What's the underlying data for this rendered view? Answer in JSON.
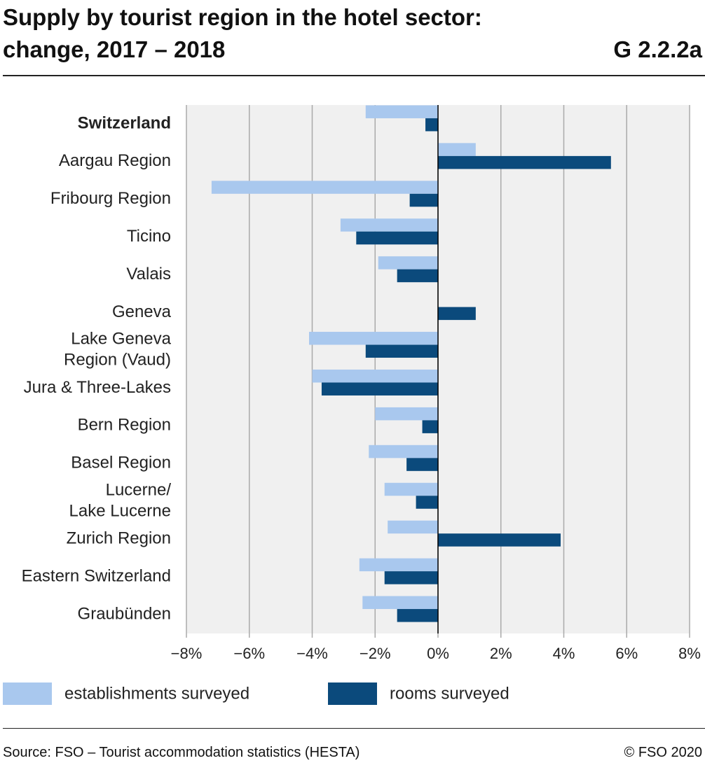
{
  "chart_data": {
    "type": "hbar",
    "title": "Supply by tourist region in the hotel sector:\nchange, 2017 – 2018",
    "chart_id": "G 2.2.2a",
    "categories": [
      "Switzerland",
      "Aargau Region",
      "Fribourg Region",
      "Ticino",
      "Valais",
      "Geneva",
      "Lake Geneva\nRegion (Vaud)",
      "Jura & Three-Lakes",
      "Bern Region",
      "Basel Region",
      "Lucerne/\nLake Lucerne",
      "Zurich Region",
      "Eastern Switzerland",
      "Graubünden"
    ],
    "series": [
      {
        "name": "establishments surveyed",
        "color": "#a9c8ee",
        "values": [
          -2.3,
          1.2,
          -7.2,
          -3.1,
          -1.9,
          0,
          -4.1,
          -4.0,
          -2.0,
          -2.2,
          -1.7,
          -1.6,
          -2.5,
          -2.4
        ]
      },
      {
        "name": "rooms surveyed",
        "color": "#0b4a7c",
        "values": [
          -0.4,
          5.5,
          -0.9,
          -2.6,
          -1.3,
          1.2,
          -2.3,
          -3.7,
          -0.5,
          -1.0,
          -0.7,
          3.9,
          -1.7,
          -1.3
        ]
      }
    ],
    "xlim": [
      -8,
      8
    ],
    "xticks": [
      {
        "value": -8,
        "label": "−8%"
      },
      {
        "value": -6,
        "label": "−6%"
      },
      {
        "value": -4,
        "label": "−4%"
      },
      {
        "value": -2,
        "label": "−2%"
      },
      {
        "value": 0,
        "label": "0%"
      },
      {
        "value": 2,
        "label": "2%"
      },
      {
        "value": 4,
        "label": "4%"
      },
      {
        "value": 6,
        "label": "6%"
      },
      {
        "value": 8,
        "label": "8%"
      }
    ],
    "grid": true,
    "source": "Source: FSO – Tourist accommodation statistics (HESTA)",
    "copyright": "© FSO 2020"
  }
}
